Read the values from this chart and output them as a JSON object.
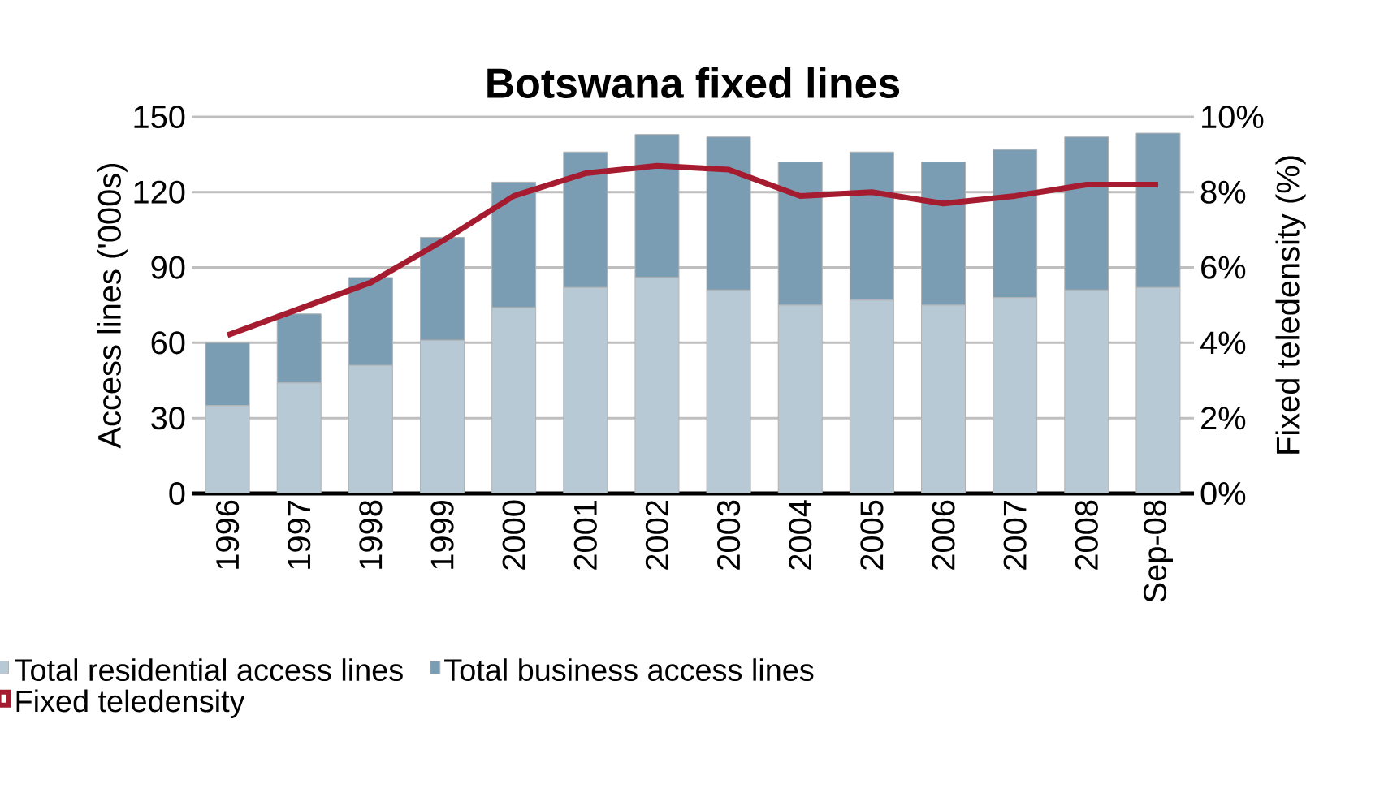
{
  "chart_data": {
    "type": "bar",
    "title": "Botswana fixed lines",
    "ylabel": "Access lines ('000s)",
    "y2label": "Fixed teledensity (%)",
    "categories": [
      "1996",
      "1997",
      "1998",
      "1999",
      "2000",
      "2001",
      "2002",
      "2003",
      "2004",
      "2005",
      "2006",
      "2007",
      "2008",
      "Sep-08"
    ],
    "stacked": true,
    "series": [
      {
        "name": "Total residential access lines",
        "color": "#b8c9d6",
        "values": [
          35,
          44,
          51,
          61,
          74,
          82,
          86,
          81,
          75,
          77,
          75,
          78,
          81,
          82
        ]
      },
      {
        "name": "Total business access lines",
        "color": "#7a9db4",
        "values": [
          25,
          27.5,
          35,
          41,
          50,
          54,
          57,
          61,
          57,
          59,
          57,
          59,
          61,
          61.5
        ]
      },
      {
        "name": "Fixed teledensity",
        "type": "line",
        "axis": "y2",
        "color": "#a51c30",
        "values": [
          4.2,
          4.9,
          5.6,
          6.7,
          7.9,
          8.5,
          8.7,
          8.6,
          7.9,
          8.0,
          7.7,
          7.9,
          8.2,
          8.2
        ]
      }
    ],
    "ylim": [
      0,
      150
    ],
    "yticks": [
      0,
      30,
      60,
      90,
      120,
      150
    ],
    "y2lim": [
      0,
      10
    ],
    "y2ticks": [
      {
        "value": 0,
        "label": "0%"
      },
      {
        "value": 2,
        "label": "2%"
      },
      {
        "value": 4,
        "label": "4%"
      },
      {
        "value": 6,
        "label": "6%"
      },
      {
        "value": 8,
        "label": "8%"
      },
      {
        "value": 10,
        "label": "10%"
      }
    ],
    "grid": "y",
    "legend": "bottom",
    "marker": "none",
    "line_style": "solid"
  }
}
